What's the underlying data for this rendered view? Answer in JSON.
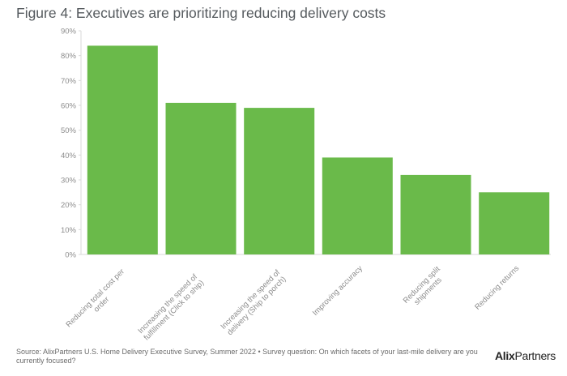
{
  "title": "Figure 4: Executives are prioritizing reducing delivery costs",
  "chart_data": {
    "type": "bar",
    "categories": [
      [
        "Reducing total cost per",
        "order"
      ],
      [
        "Increasing the speed of",
        "fulfillment (Click to ship)"
      ],
      [
        "Increasing the speed of",
        "delivery (Ship to porch)"
      ],
      [
        "Improving accuracy"
      ],
      [
        "Reducing split",
        "shipments"
      ],
      [
        "Reducing returns"
      ]
    ],
    "values": [
      84,
      61,
      59,
      39,
      32,
      25
    ],
    "ylim": [
      0,
      90
    ],
    "yticks": [
      "0%",
      "10%",
      "20%",
      "30%",
      "40%",
      "50%",
      "60%",
      "70%",
      "80%",
      "90%"
    ],
    "bar_color": "#6aba4a",
    "grid": false
  },
  "source": "Source: AlixPartners U.S. Home Delivery Executive Survey, Summer 2022 • Survey question: On which facets of your last-mile delivery are you currently focused?",
  "logo": {
    "bold": "Alix",
    "light": "Partners"
  }
}
